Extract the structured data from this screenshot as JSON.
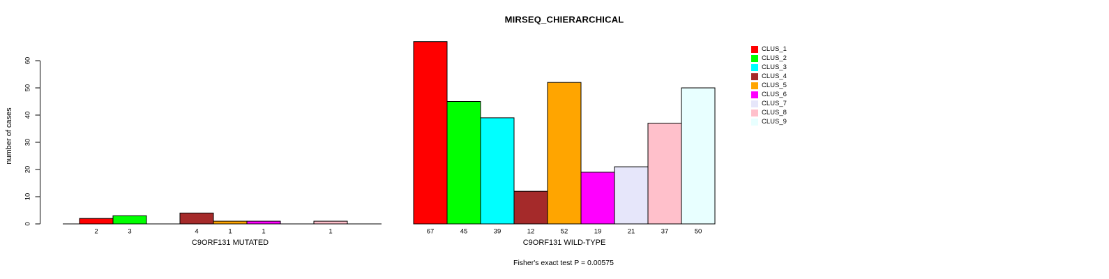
{
  "title": "MIRSEQ_CHIERARCHICAL",
  "footer": "Fisher's exact test P = 0.00575",
  "y_axis": {
    "label": "number of cases",
    "ticks": [
      0,
      10,
      20,
      30,
      40,
      50,
      60
    ],
    "range": [
      0,
      60
    ]
  },
  "legend": {
    "position": "right",
    "items": [
      {
        "label": "CLUS_1",
        "color": "#FF0000"
      },
      {
        "label": "CLUS_2",
        "color": "#00FF00"
      },
      {
        "label": "CLUS_3",
        "color": "#00FFFF"
      },
      {
        "label": "CLUS_4",
        "color": "#A52A2A"
      },
      {
        "label": "CLUS_5",
        "color": "#FFA500"
      },
      {
        "label": "CLUS_6",
        "color": "#FF00FF"
      },
      {
        "label": "CLUS_7",
        "color": "#E6E6FA"
      },
      {
        "label": "CLUS_8",
        "color": "#FFC0CB"
      },
      {
        "label": "CLUS_9",
        "color": "#E8FFFF"
      }
    ]
  },
  "chart_data": [
    {
      "type": "bar",
      "panel": "mutated",
      "title": "MIRSEQ_CHIERARCHICAL",
      "xlabel": "C9ORF131 MUTATED",
      "ylabel": "number of cases",
      "categories": [
        "CLUS_1",
        "CLUS_2",
        "CLUS_3",
        "CLUS_4",
        "CLUS_5",
        "CLUS_6",
        "CLUS_7",
        "CLUS_8",
        "CLUS_9"
      ],
      "values": [
        2,
        3,
        0,
        4,
        1,
        1,
        0,
        1,
        0
      ],
      "bar_labels": [
        "2",
        "3",
        "",
        "4",
        "1",
        "1",
        "",
        "1",
        ""
      ],
      "ylim": [
        0,
        60
      ],
      "grid": false,
      "legend_position": "right"
    },
    {
      "type": "bar",
      "panel": "wild-type",
      "title": "MIRSEQ_CHIERARCHICAL",
      "xlabel": "C9ORF131 WILD-TYPE",
      "ylabel": "number of cases",
      "categories": [
        "CLUS_1",
        "CLUS_2",
        "CLUS_3",
        "CLUS_4",
        "CLUS_5",
        "CLUS_6",
        "CLUS_7",
        "CLUS_8",
        "CLUS_9"
      ],
      "values": [
        67,
        45,
        39,
        12,
        52,
        19,
        21,
        37,
        50
      ],
      "bar_labels": [
        "67",
        "45",
        "39",
        "12",
        "52",
        "19",
        "21",
        "37",
        "50"
      ],
      "ylim": [
        0,
        60
      ],
      "grid": false,
      "legend_position": "right"
    }
  ]
}
